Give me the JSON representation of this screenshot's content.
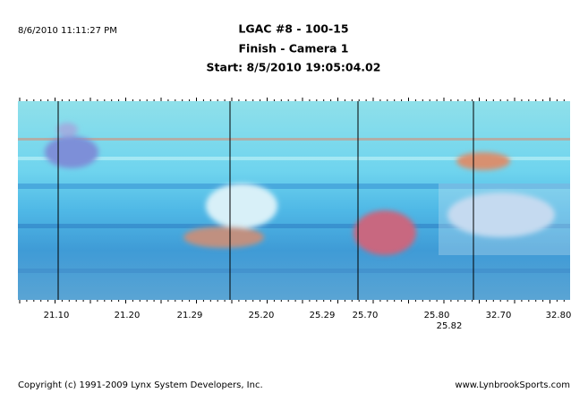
{
  "header": {
    "timestamp": "8/6/2010 11:11:27 PM",
    "title": "LGAC #8 - 100-15",
    "subtitle": "Finish - Camera 1",
    "start": "Start: 8/5/2010 19:05:04.02"
  },
  "time_labels": [
    "21.10",
    "21.20",
    "21.29",
    "25.20",
    "25.29",
    "25.70",
    "25.80",
    "25.82",
    "32.70",
    "32.80"
  ],
  "footer": {
    "copyright": "Copyright (c) 1991-2009 Lynx System Developers, Inc.",
    "website": "www.LynbrookSports.com"
  }
}
